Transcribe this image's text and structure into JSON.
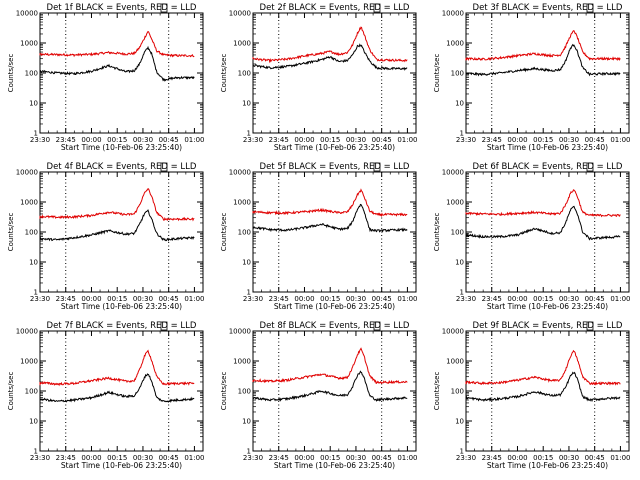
{
  "chart_data": {
    "type": "line",
    "grid": false,
    "y_scale": "log",
    "ylim": [
      1,
      10000
    ],
    "y_ticks": [
      "1",
      "10",
      "100",
      "1000",
      "10000"
    ],
    "xlim": [
      0,
      95
    ],
    "x_tick_labels": [
      "23:30",
      "23:45",
      "00:00",
      "00:15",
      "00:30",
      "00:45",
      "01:00"
    ],
    "x_tick_values": [
      0,
      15,
      30,
      45,
      60,
      75,
      90
    ],
    "dotted_markers_at": [
      15,
      75
    ],
    "ylabel": "Counts/sec",
    "xlabel": "Start Time (10-Feb-06 23:25:40)",
    "colors": {
      "events": "#000000",
      "lld": "#e00000"
    },
    "panels": [
      {
        "title": "Det 1f BLACK = Events, RED = LLD",
        "series": [
          {
            "x": [
              -6,
              0,
              10,
              20,
              30,
              40,
              50,
              55,
              58,
              61,
              63,
              65,
              68,
              72,
              80,
              90
            ],
            "y": [
              400,
              420,
              410,
              400,
              420,
              480,
              430,
              450,
              700,
              1500,
              2500,
              1400,
              550,
              400,
              380,
              380
            ]
          },
          {
            "x": [
              -6,
              0,
              10,
              20,
              30,
              40,
              50,
              55,
              58,
              61,
              63,
              65,
              68,
              72,
              80,
              90
            ],
            "y": [
              110,
              115,
              100,
              95,
              115,
              175,
              110,
              120,
              200,
              500,
              700,
              450,
              110,
              60,
              70,
              70
            ]
          }
        ]
      },
      {
        "title": "Det 2f BLACK = Events, RED = LLD",
        "series": [
          {
            "x": [
              -6,
              0,
              10,
              20,
              30,
              40,
              45,
              50,
              55,
              58,
              61,
              63,
              65,
              68,
              72,
              80,
              90
            ],
            "y": [
              320,
              300,
              260,
              290,
              370,
              450,
              520,
              420,
              480,
              850,
              2200,
              3500,
              1800,
              600,
              280,
              270,
              260
            ]
          },
          {
            "x": [
              -6,
              0,
              10,
              20,
              30,
              40,
              45,
              50,
              55,
              58,
              61,
              63,
              65,
              68,
              72,
              80,
              90
            ],
            "y": [
              190,
              180,
              150,
              165,
              210,
              280,
              350,
              240,
              260,
              400,
              800,
              850,
              500,
              250,
              150,
              140,
              140
            ]
          }
        ]
      },
      {
        "title": "Det 3f BLACK = Events, RED = LLD",
        "series": [
          {
            "x": [
              -6,
              0,
              10,
              20,
              30,
              40,
              50,
              55,
              58,
              61,
              63,
              65,
              68,
              72,
              80,
              90
            ],
            "y": [
              280,
              300,
              290,
              320,
              380,
              440,
              380,
              400,
              750,
              1800,
              2600,
              1500,
              500,
              300,
              300,
              300
            ]
          },
          {
            "x": [
              -6,
              0,
              10,
              20,
              30,
              40,
              50,
              55,
              58,
              61,
              63,
              65,
              68,
              72,
              80,
              90
            ],
            "y": [
              90,
              95,
              90,
              100,
              120,
              140,
              120,
              130,
              250,
              700,
              900,
              500,
              150,
              90,
              95,
              95
            ]
          }
        ]
      },
      {
        "title": "Det 4f BLACK = Events, RED = LLD",
        "series": [
          {
            "x": [
              -6,
              0,
              10,
              20,
              30,
              40,
              50,
              55,
              58,
              61,
              63,
              65,
              68,
              72,
              80,
              90
            ],
            "y": [
              320,
              330,
              310,
              320,
              360,
              460,
              380,
              400,
              800,
              2000,
              2800,
              1600,
              450,
              270,
              270,
              270
            ]
          },
          {
            "x": [
              -6,
              0,
              10,
              20,
              30,
              40,
              50,
              55,
              58,
              61,
              63,
              65,
              68,
              72,
              80,
              90
            ],
            "y": [
              55,
              60,
              55,
              65,
              80,
              110,
              85,
              90,
              180,
              420,
              500,
              280,
              90,
              55,
              60,
              65
            ]
          }
        ]
      },
      {
        "title": "Det 5f BLACK = Events, RED = LLD",
        "series": [
          {
            "x": [
              -6,
              0,
              10,
              20,
              30,
              40,
              50,
              55,
              58,
              61,
              63,
              65,
              68,
              72,
              80,
              90
            ],
            "y": [
              450,
              470,
              440,
              430,
              470,
              540,
              440,
              460,
              800,
              1800,
              2500,
              1400,
              500,
              380,
              380,
              380
            ]
          },
          {
            "x": [
              -6,
              0,
              10,
              20,
              30,
              40,
              50,
              55,
              58,
              61,
              63,
              65,
              68,
              72,
              80,
              90
            ],
            "y": [
              130,
              145,
              120,
              115,
              140,
              180,
              125,
              130,
              220,
              600,
              850,
              450,
              120,
              110,
              115,
              120
            ]
          }
        ]
      },
      {
        "title": "Det 6f BLACK = Events, RED = LLD",
        "series": [
          {
            "x": [
              -6,
              0,
              10,
              20,
              30,
              40,
              50,
              55,
              58,
              61,
              63,
              65,
              68,
              72,
              80,
              90
            ],
            "y": [
              420,
              420,
              400,
              390,
              420,
              450,
              400,
              420,
              800,
              2000,
              2600,
              1500,
              450,
              360,
              360,
              360
            ]
          },
          {
            "x": [
              -6,
              0,
              10,
              20,
              30,
              40,
              50,
              55,
              58,
              61,
              63,
              65,
              68,
              72,
              80,
              90
            ],
            "y": [
              75,
              80,
              70,
              70,
              80,
              130,
              90,
              95,
              200,
              550,
              700,
              400,
              100,
              60,
              65,
              70
            ]
          }
        ]
      },
      {
        "title": "Det 7f BLACK = Events, RED = LLD",
        "series": [
          {
            "x": [
              -6,
              0,
              10,
              20,
              30,
              40,
              50,
              55,
              58,
              61,
              63,
              65,
              68,
              72,
              80,
              90
            ],
            "y": [
              170,
              190,
              170,
              180,
              220,
              270,
              210,
              220,
              500,
              1500,
              2200,
              1100,
              300,
              170,
              180,
              180
            ]
          },
          {
            "x": [
              -6,
              0,
              10,
              20,
              30,
              40,
              50,
              55,
              58,
              61,
              63,
              65,
              68,
              72,
              80,
              90
            ],
            "y": [
              50,
              55,
              45,
              50,
              60,
              90,
              65,
              70,
              120,
              300,
              380,
              220,
              60,
              45,
              50,
              55
            ]
          }
        ]
      },
      {
        "title": "Det 8f BLACK = Events, RED = LLD",
        "series": [
          {
            "x": [
              -6,
              0,
              10,
              20,
              30,
              40,
              50,
              55,
              58,
              61,
              63,
              65,
              68,
              72,
              80,
              90
            ],
            "y": [
              210,
              230,
              210,
              230,
              290,
              360,
              270,
              280,
              600,
              1700,
              2500,
              1300,
              320,
              190,
              200,
              200
            ]
          },
          {
            "x": [
              -6,
              0,
              10,
              20,
              30,
              40,
              50,
              55,
              58,
              61,
              63,
              65,
              68,
              72,
              80,
              90
            ],
            "y": [
              55,
              60,
              50,
              55,
              70,
              100,
              70,
              75,
              140,
              350,
              450,
              250,
              70,
              50,
              55,
              60
            ]
          }
        ]
      },
      {
        "title": "Det 9f BLACK = Events, RED = LLD",
        "series": [
          {
            "x": [
              -6,
              0,
              10,
              20,
              30,
              40,
              50,
              55,
              58,
              61,
              63,
              65,
              68,
              72,
              80,
              90
            ],
            "y": [
              180,
              200,
              180,
              190,
              230,
              290,
              220,
              230,
              500,
              1500,
              2200,
              1100,
              300,
              180,
              180,
              180
            ]
          },
          {
            "x": [
              -6,
              0,
              10,
              20,
              30,
              40,
              50,
              55,
              58,
              61,
              63,
              65,
              68,
              72,
              80,
              90
            ],
            "y": [
              55,
              60,
              50,
              55,
              65,
              95,
              70,
              75,
              130,
              330,
              420,
              240,
              65,
              50,
              55,
              60
            ]
          }
        ]
      }
    ]
  }
}
